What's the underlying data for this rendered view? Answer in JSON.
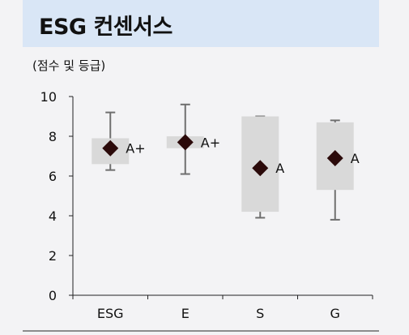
{
  "header": {
    "title": "ESG 컨센서스"
  },
  "chart_data": {
    "type": "box",
    "unit_label": "(점수 및 등급)",
    "categories": [
      "ESG",
      "E",
      "S",
      "G"
    ],
    "ylim": [
      0,
      10
    ],
    "yticks": [
      0,
      2,
      4,
      6,
      8,
      10
    ],
    "grid": false,
    "boxes": [
      {
        "category": "ESG",
        "min": 6.3,
        "q1": 6.6,
        "q3": 7.9,
        "max": 9.2,
        "mean": 7.4,
        "grade": "A+"
      },
      {
        "category": "E",
        "min": 6.1,
        "q1": 7.4,
        "q3": 8.0,
        "max": 9.6,
        "mean": 7.7,
        "grade": "A+"
      },
      {
        "category": "S",
        "min": 3.9,
        "q1": 4.2,
        "q3": 9.0,
        "max": 9.0,
        "mean": 6.4,
        "grade": "A"
      },
      {
        "category": "G",
        "min": 3.8,
        "q1": 5.3,
        "q3": 8.7,
        "max": 8.8,
        "mean": 6.9,
        "grade": "A"
      }
    ],
    "colors": {
      "box": "#d9d9d9",
      "whisker": "#6f6f6f",
      "marker": "#2b0a0a",
      "axis": "#222222",
      "text": "#111111"
    }
  }
}
